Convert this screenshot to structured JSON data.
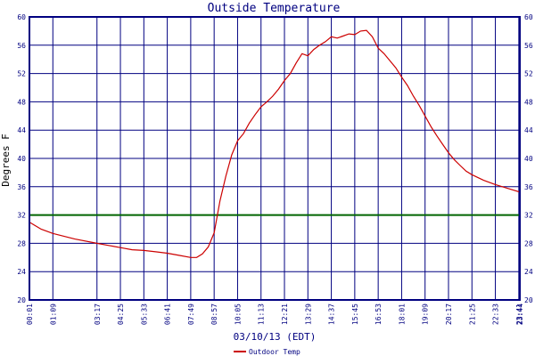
{
  "chart_data": {
    "type": "line",
    "title": "Outside Temperature",
    "xlabel": "03/10/13 (EDT)",
    "ylabel": "Degrees F",
    "ylim": [
      20,
      60
    ],
    "y_ticks": [
      20,
      24,
      28,
      32,
      36,
      40,
      44,
      48,
      52,
      56,
      60
    ],
    "x_tick_labels": [
      "00:01",
      "01:09",
      "03:17",
      "04:25",
      "05:33",
      "06:41",
      "07:49",
      "08:57",
      "10:05",
      "11:13",
      "12:21",
      "13:29",
      "14:37",
      "15:45",
      "16:53",
      "18:01",
      "19:09",
      "20:17",
      "21:25",
      "22:33",
      "23:41",
      "23:44"
    ],
    "grid": true,
    "legend_position": "bottom",
    "reference_line": {
      "y": 32,
      "color": "#006400"
    },
    "series": [
      {
        "name": "Outdoor Temp",
        "color": "#cc0000",
        "x": [
          "00:01",
          "00:35",
          "01:09",
          "02:13",
          "03:17",
          "03:51",
          "04:25",
          "04:59",
          "05:33",
          "06:07",
          "06:41",
          "07:15",
          "07:49",
          "08:06",
          "08:23",
          "08:40",
          "08:57",
          "09:14",
          "09:31",
          "09:48",
          "10:05",
          "10:22",
          "10:39",
          "10:56",
          "11:13",
          "11:30",
          "11:47",
          "12:04",
          "12:21",
          "12:38",
          "12:55",
          "13:12",
          "13:29",
          "13:46",
          "14:03",
          "14:20",
          "14:37",
          "14:54",
          "15:11",
          "15:28",
          "15:45",
          "16:02",
          "16:19",
          "16:36",
          "16:53",
          "17:10",
          "17:27",
          "17:44",
          "18:01",
          "18:18",
          "18:35",
          "18:52",
          "19:09",
          "19:26",
          "19:43",
          "20:00",
          "20:17",
          "20:34",
          "20:51",
          "21:08",
          "21:25",
          "21:59",
          "22:33",
          "23:07",
          "23:41",
          "23:44"
        ],
        "values": [
          31.0,
          30.0,
          29.4,
          28.6,
          28.0,
          27.7,
          27.4,
          27.1,
          27.0,
          26.8,
          26.6,
          26.3,
          26.0,
          26.0,
          26.5,
          27.5,
          29.5,
          34.0,
          37.5,
          40.5,
          42.5,
          43.5,
          45.0,
          46.2,
          47.3,
          48.0,
          48.8,
          49.8,
          51.0,
          52.0,
          53.5,
          54.8,
          54.5,
          55.4,
          56.0,
          56.5,
          57.2,
          57.0,
          57.3,
          57.6,
          57.5,
          58.0,
          58.1,
          57.2,
          55.6,
          54.8,
          53.8,
          52.8,
          51.5,
          50.3,
          48.8,
          47.5,
          46.0,
          44.5,
          43.2,
          42.0,
          40.8,
          39.8,
          39.0,
          38.2,
          37.7,
          36.9,
          36.3,
          35.8,
          35.3,
          35.2
        ]
      }
    ]
  }
}
